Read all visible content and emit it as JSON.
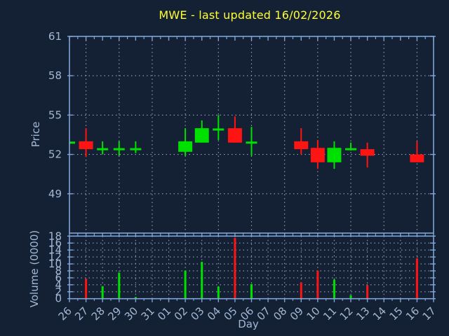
{
  "title": "MWE - last updated 16/02/2026",
  "axes": {
    "price_label": "Price",
    "volume_label": "Volume (0000)",
    "x_label": "Day",
    "price_ticks": [
      49,
      52,
      55,
      58,
      61
    ],
    "price_range": [
      46,
      61
    ],
    "volume_ticks": [
      0,
      2,
      4,
      6,
      8,
      10,
      12,
      14,
      16,
      18
    ],
    "volume_range": [
      0,
      18
    ]
  },
  "colors": {
    "background": "#142033",
    "title": "#ffff33",
    "axis_text": "#a3b8d4",
    "spine": "#7fa5d6",
    "grid": "#95a3b5",
    "up": "#00e000",
    "down": "#ff1414"
  },
  "chart_data": {
    "type": "candlestick-with-volume",
    "x": [
      "26",
      "27",
      "28",
      "29",
      "30",
      "31",
      "01",
      "02",
      "03",
      "04",
      "05",
      "06",
      "07",
      "08",
      "09",
      "10",
      "11",
      "12",
      "13",
      "14",
      "15",
      "16",
      "17"
    ],
    "candles": [
      {
        "open": 52.9,
        "high": 52.9,
        "low": 52.9,
        "close": 52.9
      },
      {
        "open": 53.0,
        "high": 54.0,
        "low": 51.8,
        "close": 52.4
      },
      {
        "open": 52.4,
        "high": 53.0,
        "low": 52.0,
        "close": 52.4
      },
      {
        "open": 52.4,
        "high": 53.0,
        "low": 51.9,
        "close": 52.4
      },
      {
        "open": 52.4,
        "high": 53.0,
        "low": 52.1,
        "close": 52.4
      },
      null,
      null,
      {
        "open": 52.2,
        "high": 54.0,
        "low": 51.9,
        "close": 53.0
      },
      {
        "open": 52.9,
        "high": 54.6,
        "low": 52.9,
        "close": 54.0
      },
      {
        "open": 53.9,
        "high": 55.0,
        "low": 53.1,
        "close": 53.9
      },
      {
        "open": 54.0,
        "high": 54.9,
        "low": 52.9,
        "close": 52.9
      },
      {
        "open": 52.9,
        "high": 54.1,
        "low": 51.9,
        "close": 52.9
      },
      null,
      null,
      {
        "open": 53.0,
        "high": 54.0,
        "low": 52.0,
        "close": 52.4
      },
      {
        "open": 52.5,
        "high": 53.1,
        "low": 50.9,
        "close": 51.4
      },
      {
        "open": 51.4,
        "high": 53.0,
        "low": 50.9,
        "close": 52.5
      },
      {
        "open": 52.4,
        "high": 52.9,
        "low": 52.3,
        "close": 52.4
      },
      {
        "open": 52.4,
        "high": 52.9,
        "low": 51.0,
        "close": 51.9
      },
      null,
      null,
      {
        "open": 52.0,
        "high": 53.0,
        "low": 51.4,
        "close": 51.4
      },
      null
    ],
    "volume": [
      0,
      5.7,
      3.6,
      7.5,
      0.5,
      0,
      0,
      8.1,
      10.6,
      3.5,
      17.5,
      4.2,
      0,
      0,
      4.7,
      8.1,
      5.5,
      1.0,
      3.9,
      0,
      0,
      11.6,
      0
    ]
  }
}
